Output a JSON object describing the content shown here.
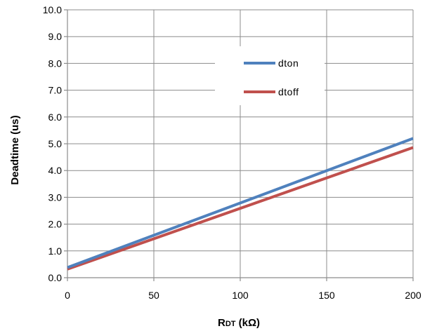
{
  "chart_data": {
    "type": "line",
    "xlabel": "RDT (kΩ)",
    "xlabel_main": "R",
    "xlabel_sub": "DT",
    "xlabel_rest": " (kΩ)",
    "ylabel": "Deadtime (us)",
    "xlim": [
      0,
      200
    ],
    "ylim": [
      0,
      10
    ],
    "x_ticks": [
      "0",
      "50",
      "100",
      "150",
      "200"
    ],
    "y_ticks": [
      "0.0",
      "1.0",
      "2.0",
      "3.0",
      "4.0",
      "5.0",
      "6.0",
      "7.0",
      "8.0",
      "9.0",
      "10.0"
    ],
    "grid": true,
    "legend_position": "top-center",
    "series": [
      {
        "name": "dton",
        "color": "#4f81bd",
        "x": [
          0,
          200
        ],
        "y": [
          0.38,
          5.2
        ]
      },
      {
        "name": "dtoff",
        "color": "#c0504d",
        "x": [
          0,
          200
        ],
        "y": [
          0.32,
          4.86
        ]
      }
    ]
  }
}
